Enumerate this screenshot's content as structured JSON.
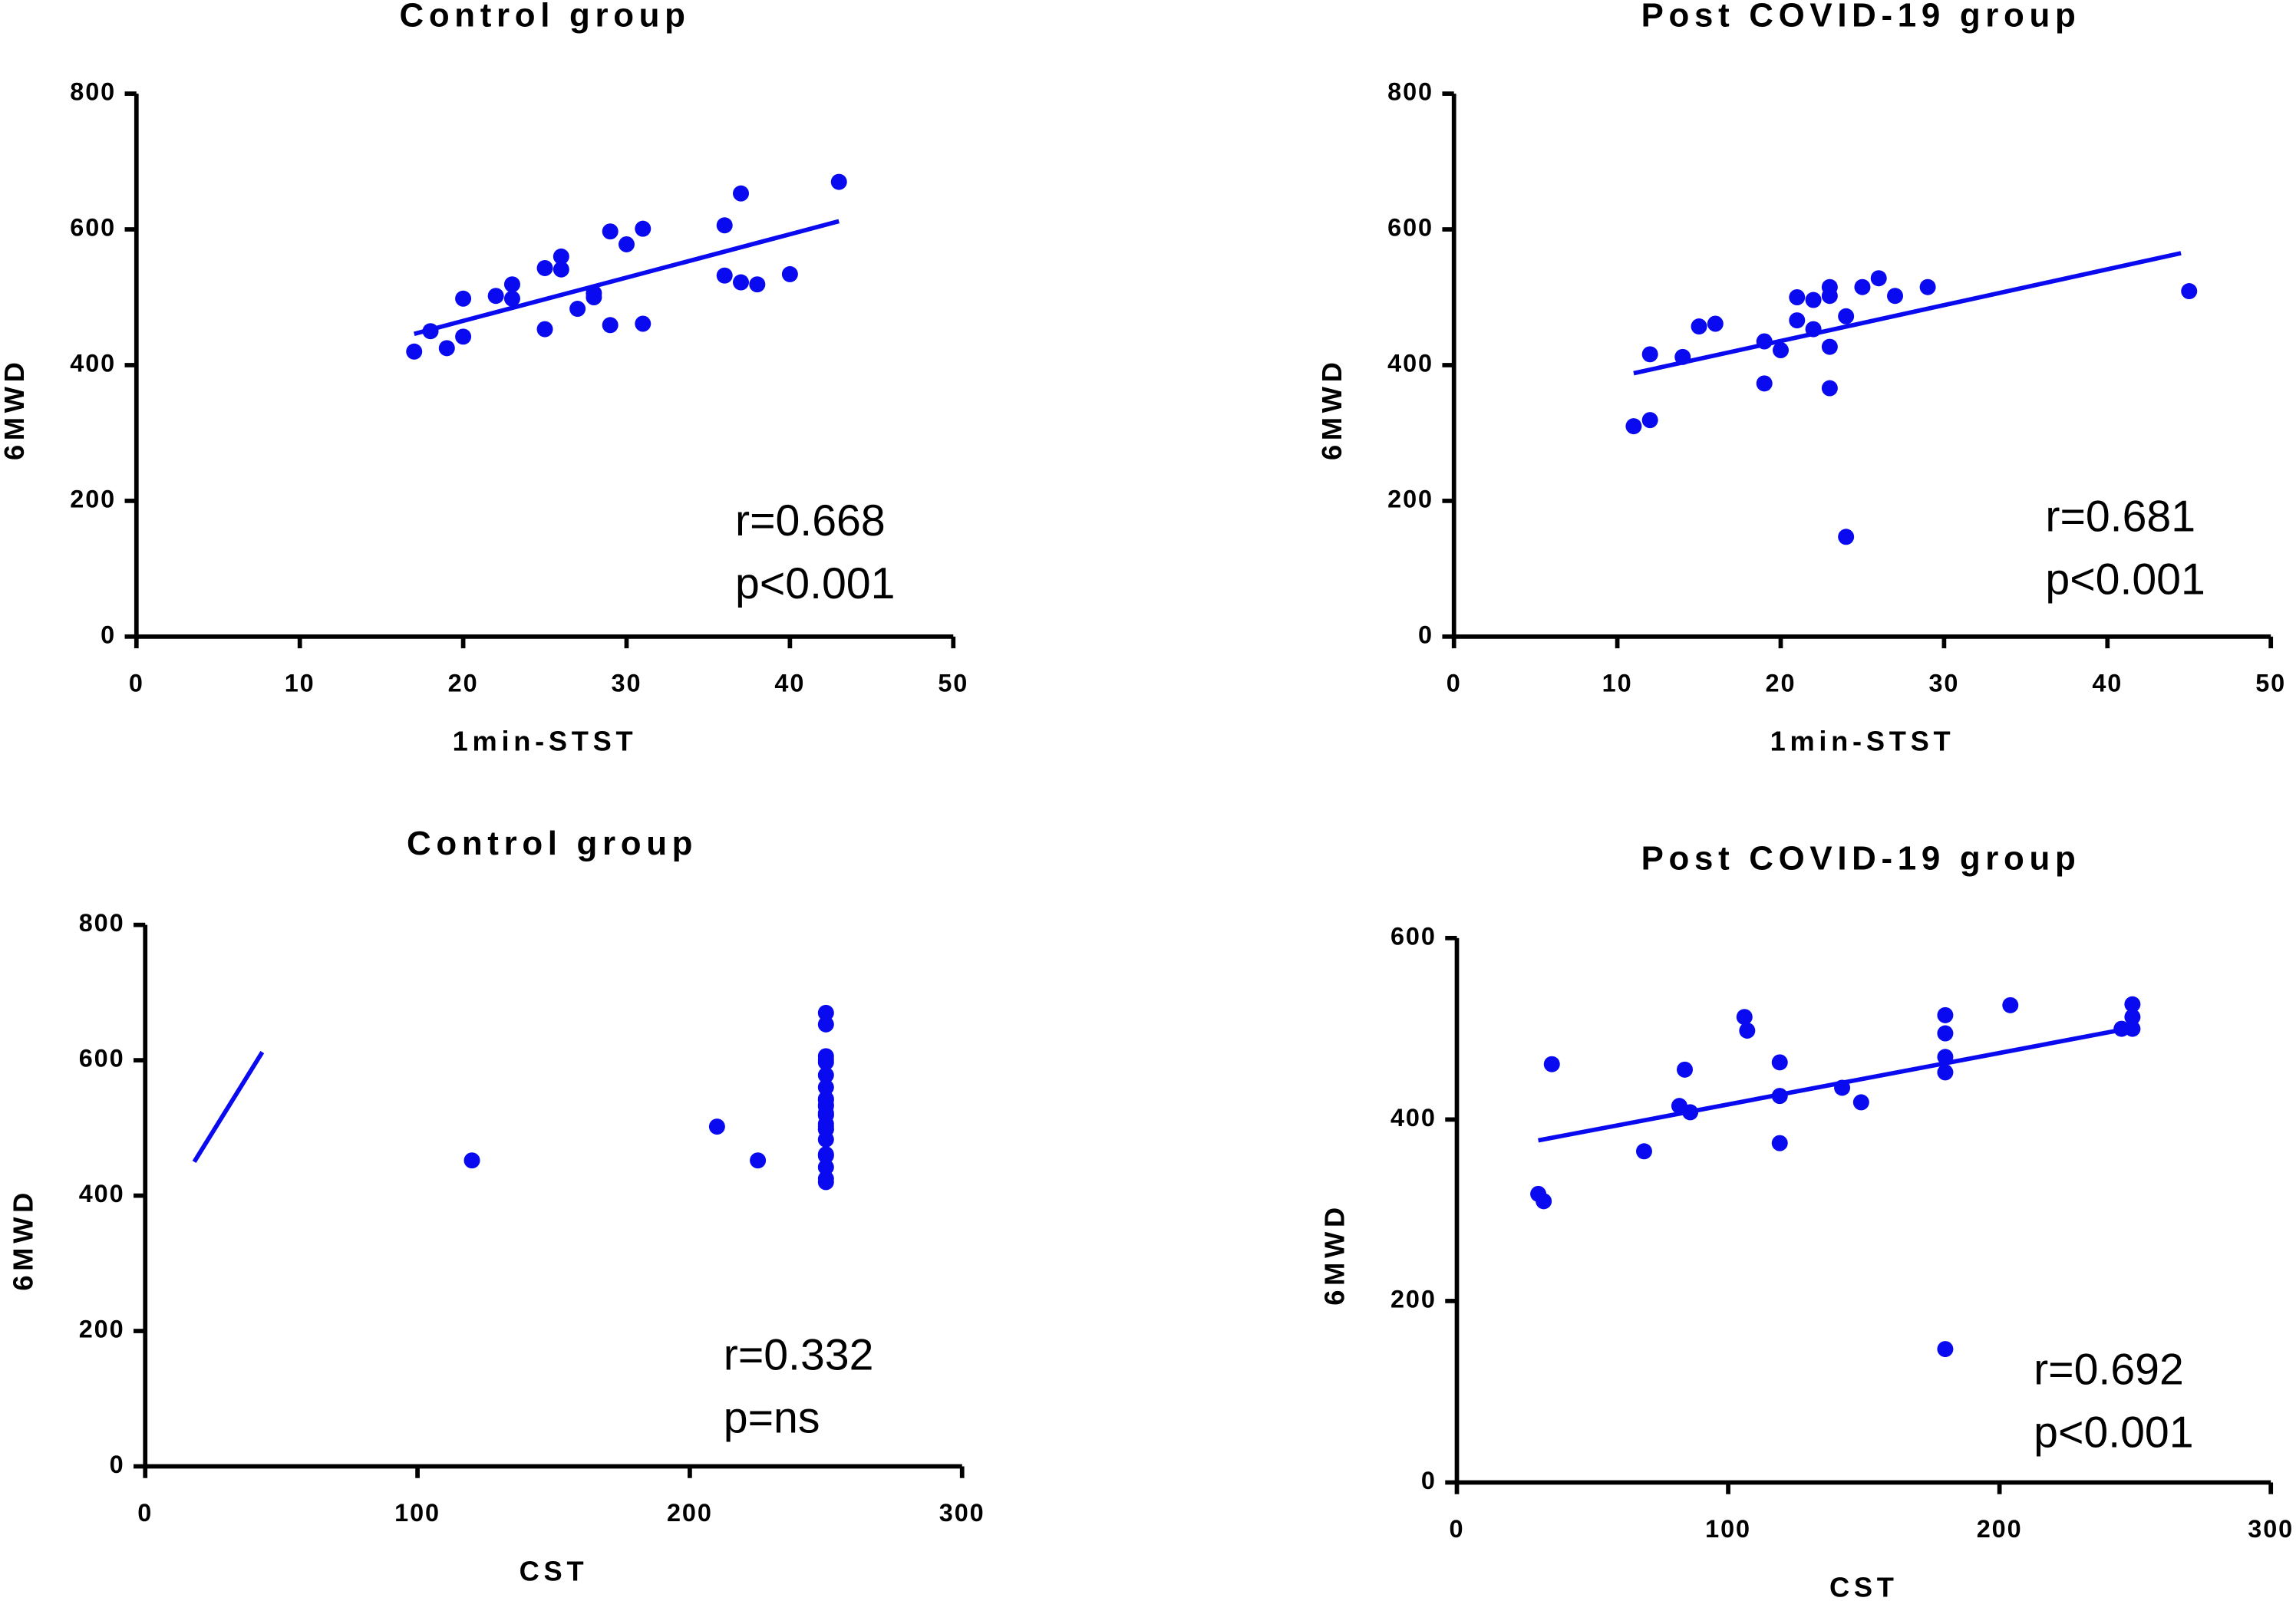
{
  "chart_data": [
    {
      "type": "scatter",
      "title": "Control group",
      "x_label": "1min-STST",
      "y_label": "6MWD",
      "color": "#0a0af0",
      "x": [
        17,
        18,
        19,
        20,
        20,
        22,
        23,
        23,
        25,
        25,
        26,
        26,
        27,
        28,
        28,
        29,
        29,
        30,
        31,
        31,
        36,
        36,
        37,
        37,
        38,
        40,
        43
      ],
      "y": [
        420,
        450,
        425,
        498,
        442,
        502,
        519,
        498,
        543,
        453,
        560,
        541,
        483,
        506,
        500,
        597,
        459,
        578,
        601,
        461,
        606,
        532,
        653,
        522,
        519,
        534,
        670
      ],
      "fit": {
        "x": [
          17,
          43
        ],
        "y": [
          446,
          612
        ]
      },
      "annotations": [
        "r=0.668",
        "p<0.001"
      ],
      "xlim": [
        0,
        50
      ],
      "xticks": [
        0,
        10,
        20,
        30,
        40,
        50
      ],
      "ylim": [
        0,
        800
      ],
      "yticks": [
        0,
        200,
        400,
        600,
        800
      ]
    },
    {
      "type": "scatter",
      "title": "Post COVID-19 group",
      "x_label": "1min-STST",
      "y_label": "6MWD",
      "color": "#0a0af0",
      "x": [
        11,
        12,
        12,
        14,
        15,
        16,
        19,
        19,
        20,
        21,
        21,
        22,
        22,
        23,
        23,
        23,
        23,
        24,
        24,
        25,
        26,
        27,
        29,
        45
      ],
      "y": [
        310,
        319,
        416,
        412,
        457,
        461,
        435,
        373,
        422,
        500,
        466,
        496,
        453,
        515,
        502,
        427,
        366,
        472,
        147,
        515,
        528,
        502,
        515,
        509
      ],
      "fit": {
        "x": [
          11,
          44.5
        ],
        "y": [
          388,
          565
        ]
      },
      "annotations": [
        "r=0.681",
        "p<0.001"
      ],
      "xlim": [
        0,
        50
      ],
      "xticks": [
        0,
        10,
        20,
        30,
        40,
        50
      ],
      "ylim": [
        0,
        800
      ],
      "yticks": [
        0,
        200,
        400,
        600,
        800
      ]
    },
    {
      "type": "scatter",
      "title": "Control group",
      "x_label": "CST",
      "y_label": "6MWD",
      "color": "#0a0af0",
      "x": [
        120,
        210,
        225,
        250,
        250,
        250,
        250,
        250,
        250,
        250,
        250,
        250,
        250,
        250,
        250,
        250,
        250,
        250,
        250,
        250,
        250,
        250,
        250,
        250,
        250,
        250,
        250
      ],
      "y": [
        452,
        502,
        452,
        420,
        425,
        498,
        442,
        502,
        519,
        498,
        543,
        560,
        541,
        483,
        506,
        597,
        459,
        578,
        601,
        461,
        606,
        532,
        653,
        522,
        519,
        534,
        670
      ],
      "fit": {
        "x": [
          18,
          43
        ],
        "y": [
          450,
          612
        ]
      },
      "annotations": [
        "r=0.332",
        "p=ns"
      ],
      "xlim": [
        0,
        300
      ],
      "xticks": [
        0,
        100,
        200,
        300
      ],
      "ylim": [
        0,
        800
      ],
      "yticks": [
        0,
        200,
        400,
        600,
        800
      ]
    },
    {
      "type": "scatter",
      "title": "Post COVID-19 group",
      "x_label": "CST",
      "y_label": "6MWD",
      "color": "#0a0af0",
      "x": [
        30,
        32,
        35,
        69,
        82,
        84,
        86,
        106,
        107,
        119,
        119,
        119,
        142,
        149,
        180,
        180,
        180,
        180,
        180,
        204,
        245,
        249,
        249,
        249
      ],
      "y": [
        318,
        310,
        461,
        365,
        415,
        455,
        408,
        513,
        498,
        463,
        426,
        374,
        435,
        419,
        515,
        495,
        469,
        452,
        147,
        526,
        500,
        527,
        513,
        500
      ],
      "fit": {
        "x": [
          30,
          247
        ],
        "y": [
          377,
          500
        ]
      },
      "annotations": [
        "r=0.692",
        "p<0.001"
      ],
      "xlim": [
        0,
        300
      ],
      "xticks": [
        0,
        100,
        200,
        300
      ],
      "ylim": [
        0,
        600
      ],
      "yticks": [
        0,
        200,
        400,
        600
      ]
    }
  ]
}
